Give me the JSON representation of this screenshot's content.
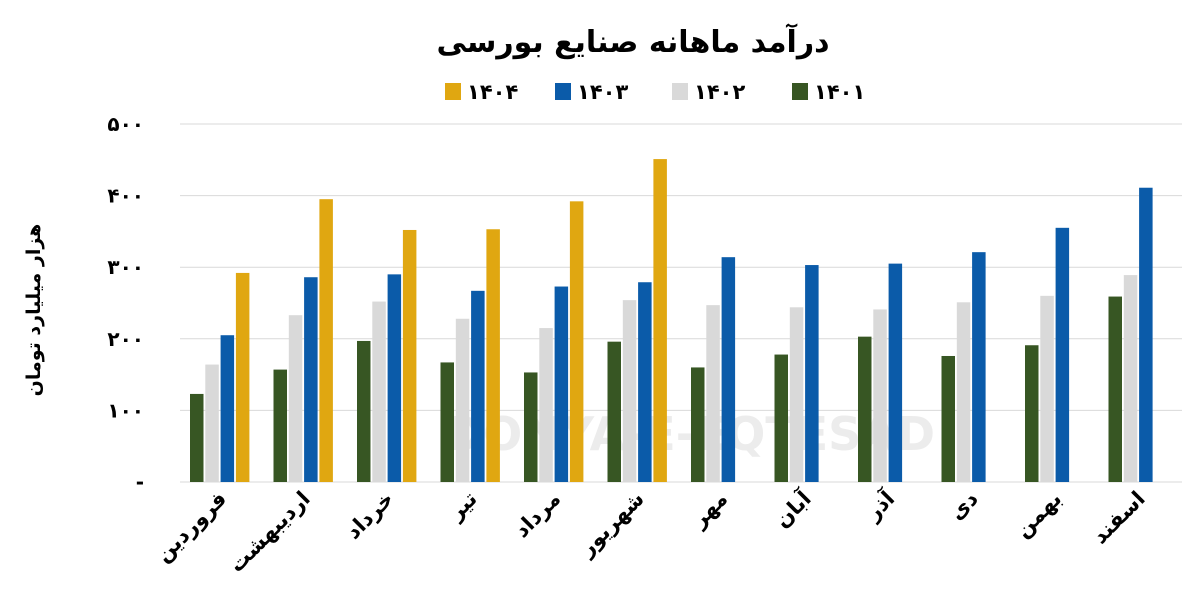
{
  "chart_data": {
    "type": "bar",
    "title": "درآمد ماهانه صنایع بورسی",
    "ylabel": "هزار میلیارد تومان",
    "xlabel": "",
    "ylim": [
      0,
      500
    ],
    "yticks": [
      {
        "value": 0,
        "label": "-"
      },
      {
        "value": 100,
        "label": "۱۰۰"
      },
      {
        "value": 200,
        "label": "۲۰۰"
      },
      {
        "value": 300,
        "label": "۳۰۰"
      },
      {
        "value": 400,
        "label": "۴۰۰"
      },
      {
        "value": 500,
        "label": "۵۰۰"
      }
    ],
    "grid": true,
    "legend_position": "top",
    "watermark": "DONYA-E-EQTESAD",
    "categories": [
      "فروردین",
      "اردیبهشت",
      "خرداد",
      "تیر",
      "مرداد",
      "شهریور",
      "مهر",
      "آبان",
      "آذر",
      "دی",
      "بهمن",
      "اسفند"
    ],
    "series": [
      {
        "name": "۱۴۰۱",
        "color": "#375623",
        "values": [
          123,
          157,
          197,
          167,
          153,
          196,
          160,
          178,
          203,
          176,
          191,
          259
        ]
      },
      {
        "name": "۱۴۰۲",
        "color": "#d9d9d9",
        "values": [
          164,
          233,
          252,
          228,
          215,
          254,
          247,
          244,
          241,
          251,
          260,
          289
        ]
      },
      {
        "name": "۱۴۰۳",
        "color": "#0b5ba9",
        "values": [
          205,
          286,
          290,
          267,
          273,
          279,
          314,
          303,
          305,
          321,
          355,
          411
        ]
      },
      {
        "name": "۱۴۰۴",
        "color": "#e0a711",
        "values": [
          292,
          395,
          352,
          353,
          392,
          451,
          null,
          null,
          null,
          null,
          null,
          null
        ]
      }
    ]
  }
}
